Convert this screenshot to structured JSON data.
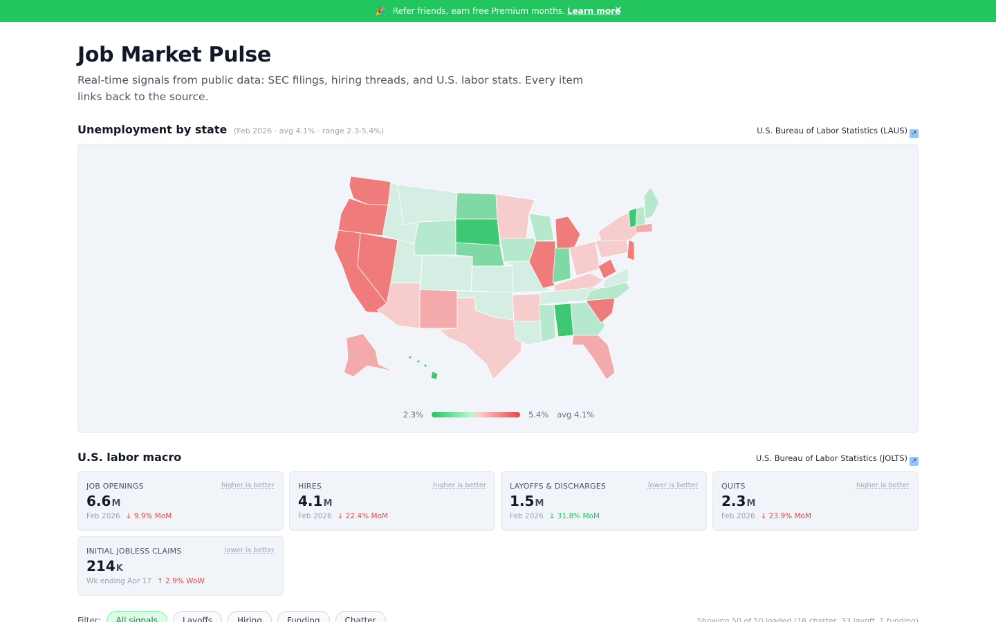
{
  "banner": {
    "icon": "party-popper-icon",
    "text": "Refer friends, earn free Premium months.",
    "link": "Learn more",
    "close": "✕"
  },
  "header": {
    "title": "Job Market Pulse",
    "subtitle": "Real-time signals from public data: SEC filings, hiring threads, and U.S. labor stats. Every item links back to the source."
  },
  "unemployment": {
    "heading": "Unemployment by state",
    "meta": "(Feb 2026 · avg 4.1% · range 2.3-5.4%)",
    "source": "U.S. Bureau of Labor Statistics (LAUS)",
    "legend_min": "2.3%",
    "legend_max": "5.4%",
    "legend_avg": "avg 4.1%",
    "colors": {
      "strong_red": "#ef7b7b",
      "mid_red": "#f4aaaa",
      "light_red": "#f7cccc",
      "neutral": "#d4eee3",
      "light_green": "#b5e8cd",
      "mid_green": "#7fd9a4",
      "strong_green": "#3ec873"
    }
  },
  "macro": {
    "heading": "U.S. labor macro",
    "source": "U.S. Bureau of Labor Statistics (JOLTS)",
    "cards": [
      {
        "label": "JOB OPENINGS",
        "hint": "higher is better",
        "value": "6.6",
        "unit": "M",
        "period": "Feb 2026",
        "change": "↓ 9.9% MoM",
        "tone": "bad"
      },
      {
        "label": "HIRES",
        "hint": "higher is better",
        "value": "4.1",
        "unit": "M",
        "period": "Feb 2026",
        "change": "↓ 22.4% MoM",
        "tone": "bad"
      },
      {
        "label": "LAYOFFS & DISCHARGES",
        "hint": "lower is better",
        "value": "1.5",
        "unit": "M",
        "period": "Feb 2026",
        "change": "↓ 31.8% MoM",
        "tone": "good"
      },
      {
        "label": "QUITS",
        "hint": "higher is better",
        "value": "2.3",
        "unit": "M",
        "period": "Feb 2026",
        "change": "↓ 23.9% MoM",
        "tone": "bad"
      },
      {
        "label": "INITIAL JOBLESS CLAIMS",
        "hint": "lower is better",
        "value": "214",
        "unit": "K",
        "period": "Wk ending Apr 17",
        "change": "↑ 2.9% WoW",
        "tone": "bad"
      }
    ]
  },
  "filters": {
    "label": "Filter:",
    "chips": [
      "All signals",
      "Layoffs",
      "Hiring",
      "Funding",
      "Chatter"
    ],
    "showing": "Showing 50 of 50 loaded (16 chatter, 33 layoff, 1 funding)"
  }
}
